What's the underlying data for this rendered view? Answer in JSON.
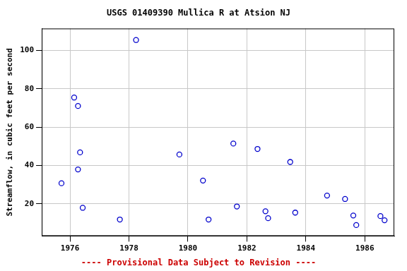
{
  "chart_data": {
    "type": "scatter",
    "title": "USGS 01409390 Mullica R at Atsion NJ",
    "y_label": "Streamflow, in cubic feet per second",
    "annotation": "---- Provisional Data Subject to Revision ----",
    "x": [
      1975.71,
      1976.14,
      1976.27,
      1976.34,
      1976.27,
      1976.43,
      1977.69,
      1978.24,
      1979.71,
      1980.51,
      1980.7,
      1981.54,
      1981.66,
      1982.36,
      1982.63,
      1982.72,
      1983.47,
      1983.64,
      1984.72,
      1985.33,
      1985.61,
      1985.71,
      1986.53,
      1986.67
    ],
    "values": [
      30.7,
      75.4,
      71,
      46.8,
      37.9,
      17.9,
      11.8,
      105.4,
      45.7,
      32.1,
      11.8,
      51.4,
      18.6,
      48.6,
      16.1,
      12.5,
      41.8,
      15.4,
      24.3,
      22.5,
      13.9,
      8.9,
      13.6,
      11.4
    ],
    "color": "#0000cc",
    "marker": "circle",
    "xlim": [
      1975.04,
      1987.0
    ],
    "xticks": [
      1976,
      1978,
      1980,
      1982,
      1984,
      1986
    ],
    "ylim": [
      3.2,
      111.4
    ],
    "yticks": [
      20,
      40,
      60,
      80,
      100
    ],
    "grid": true
  }
}
